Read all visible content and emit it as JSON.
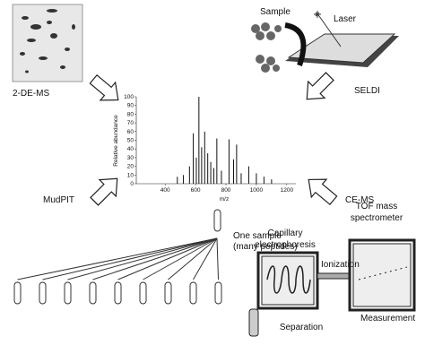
{
  "labels": {
    "two_de": "2-DE-MS",
    "sample": "Sample",
    "laser": "Laser",
    "seldi": "SELDI",
    "mudpit": "MudPIT",
    "ce_ms": "CE-MS",
    "one_sample": [
      "One sample",
      "(many peptides)"
    ],
    "tof": [
      "TOF mass",
      "spectrometer"
    ],
    "capillary": [
      "Capillary",
      "electrophoresis"
    ],
    "ionization": "Ionization",
    "separation": "Separation",
    "measurement": "Measurement"
  },
  "chart_data": {
    "type": "bar",
    "xlabel": "m/z",
    "ylabel": "Relative abundance",
    "color": "#111111",
    "x": [
      480,
      520,
      560,
      585,
      605,
      622,
      640,
      660,
      680,
      700,
      720,
      740,
      770,
      820,
      850,
      870,
      900,
      950,
      1000,
      1050,
      1100
    ],
    "values": [
      8,
      10,
      20,
      58,
      30,
      100,
      42,
      60,
      35,
      25,
      18,
      52,
      15,
      51,
      28,
      45,
      12,
      20,
      12,
      8,
      5
    ],
    "xlim": [
      210,
      1260
    ],
    "ylim": [
      0,
      100
    ],
    "xticks": [
      400,
      600,
      800,
      1000,
      1200
    ],
    "yticks": [
      0,
      10,
      20,
      30,
      40,
      50,
      60,
      70,
      80,
      90,
      100
    ]
  }
}
